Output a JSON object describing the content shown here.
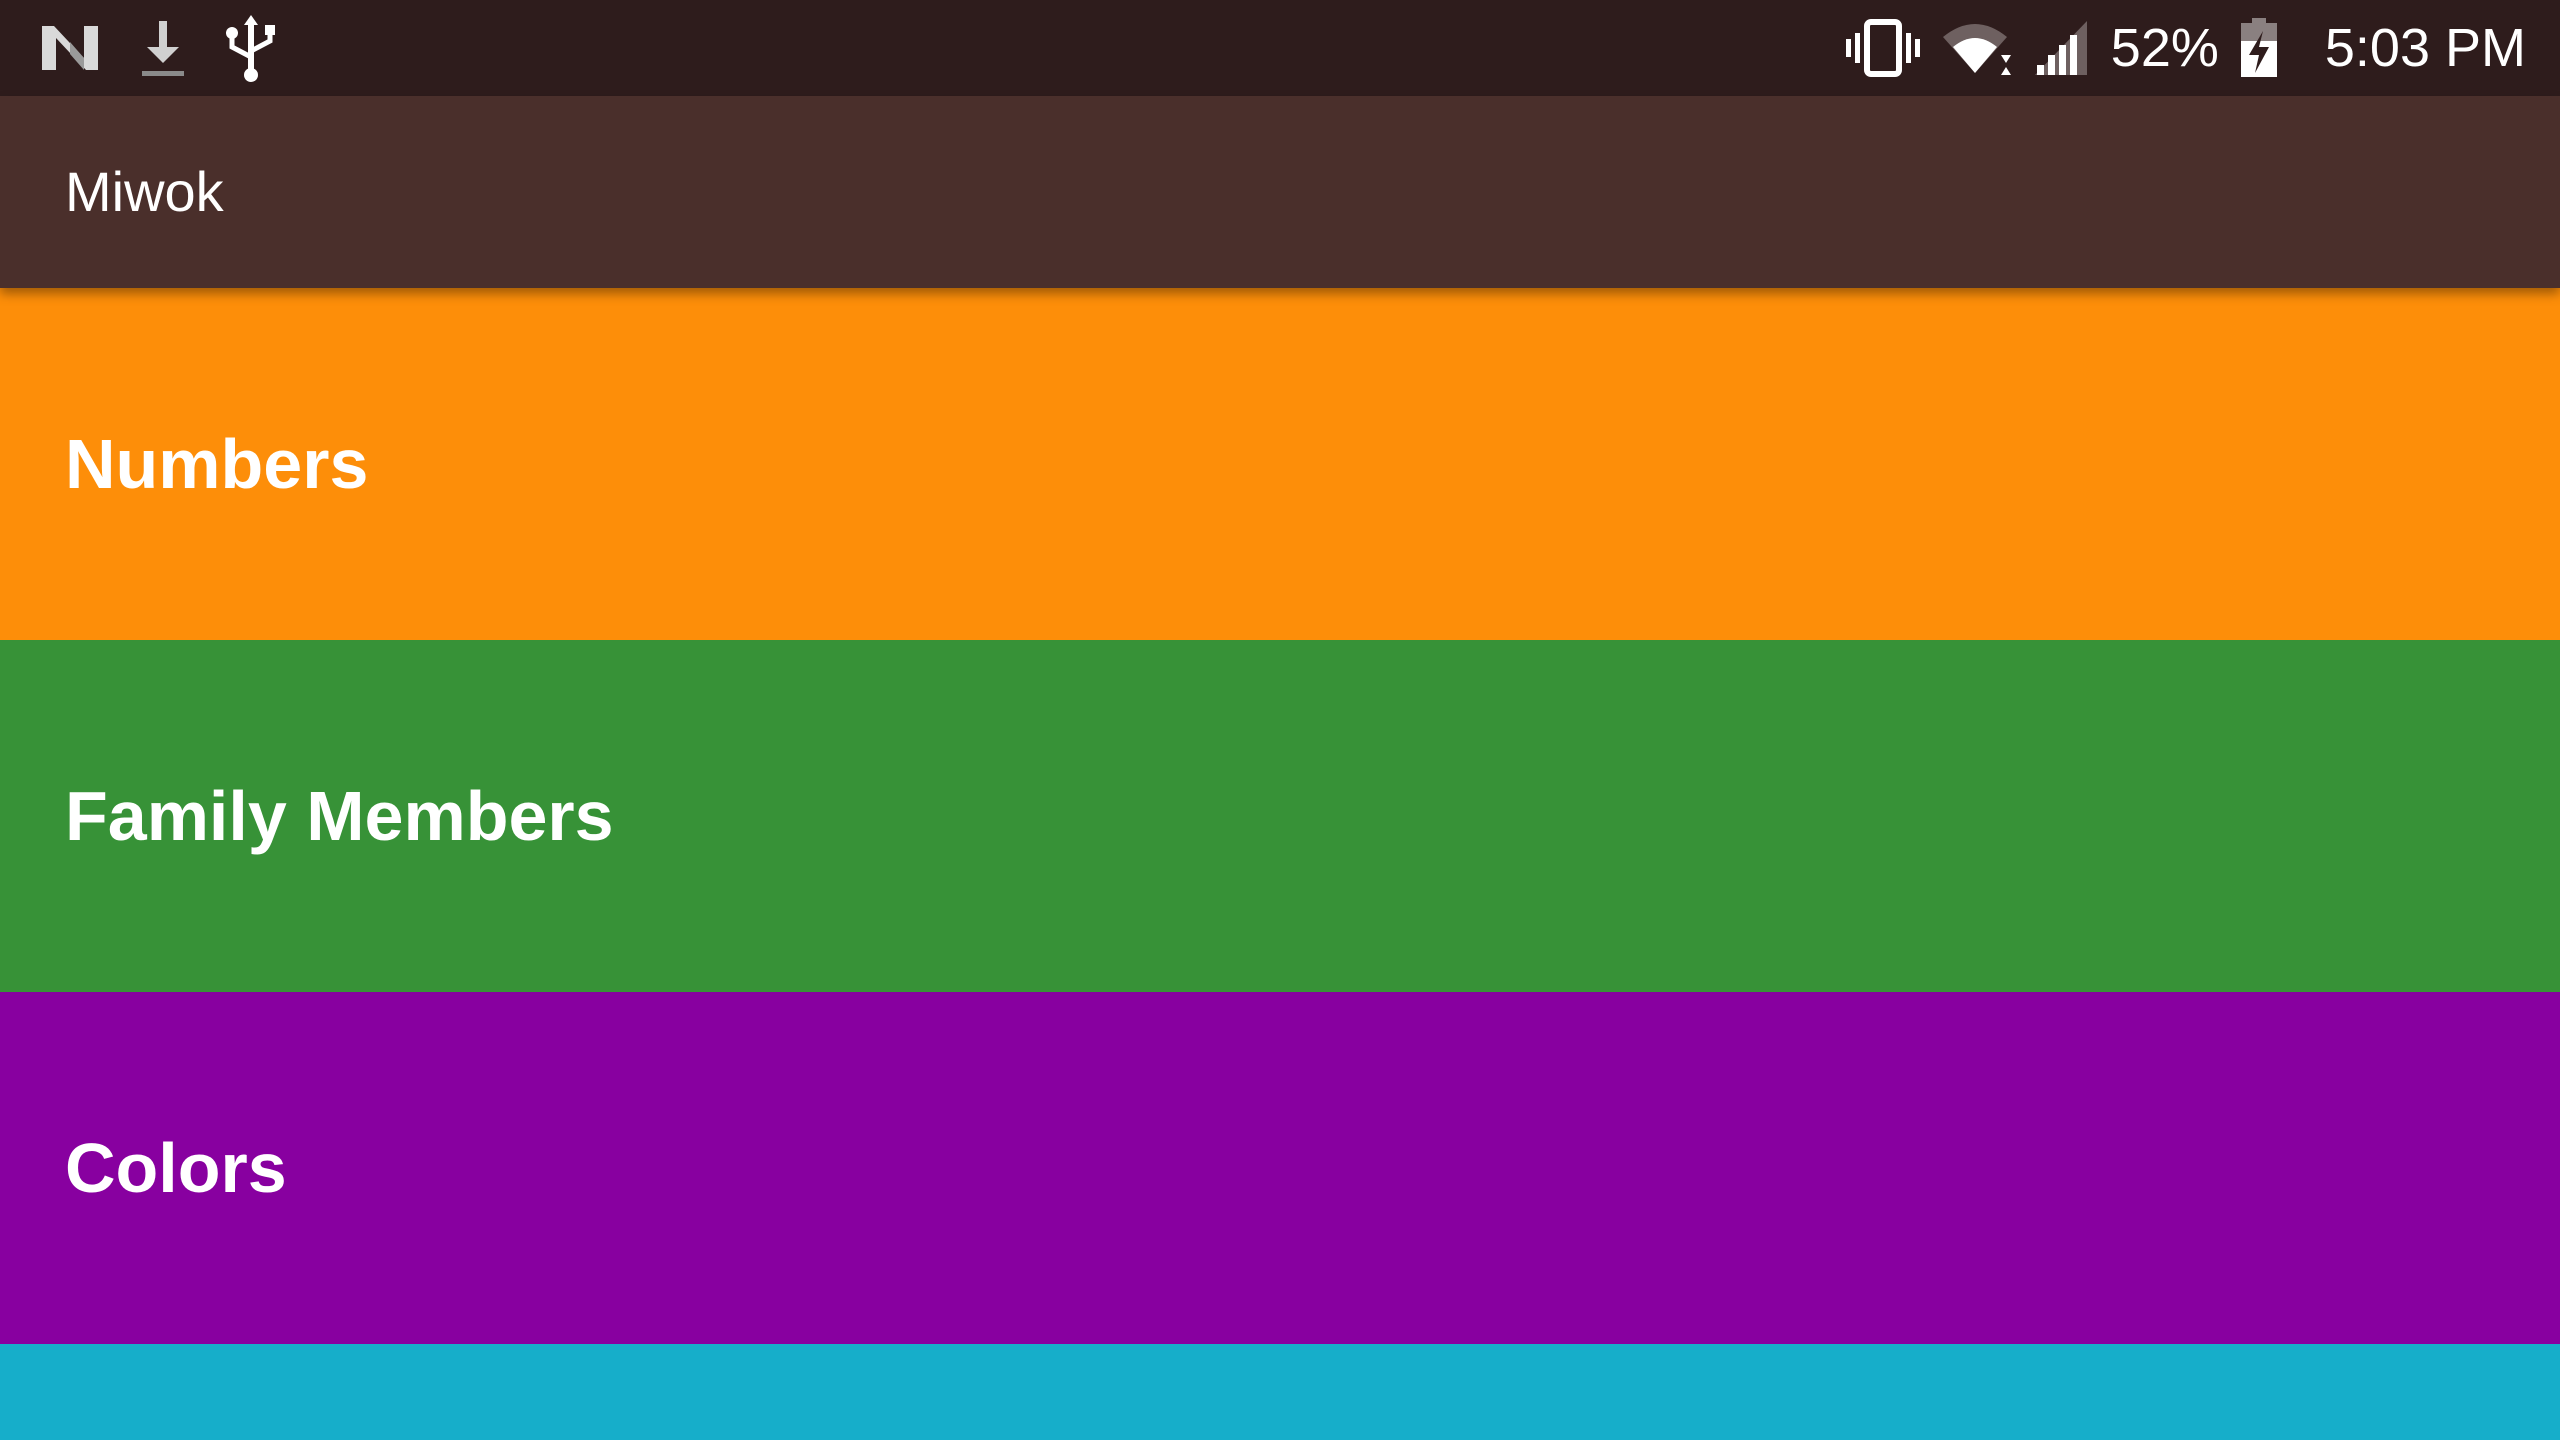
{
  "status_bar": {
    "left_icons": [
      "android-n-icon",
      "download-icon",
      "usb-icon"
    ],
    "right_icons": [
      "vibrate-icon",
      "wifi-icon",
      "cell-signal-icon",
      "battery-charging-icon"
    ],
    "battery_percent": "52%",
    "time": "5:03 PM",
    "background_color": "#2e1c1c"
  },
  "app_bar": {
    "title": "Miwok",
    "background_color": "#4a2f2b"
  },
  "categories": [
    {
      "label": "Numbers",
      "color": "#fd8e09"
    },
    {
      "label": "Family Members",
      "color": "#379237"
    },
    {
      "label": "Colors",
      "color": "#8800a0"
    },
    {
      "label": "",
      "color": "#16aeca"
    }
  ]
}
